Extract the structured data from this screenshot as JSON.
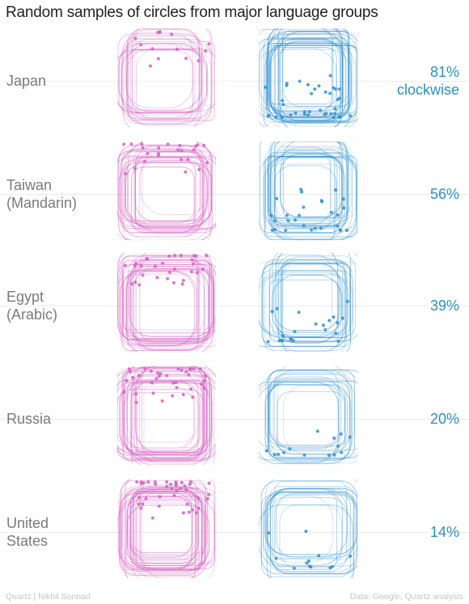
{
  "title": "Random samples of circles from major language groups",
  "colors": {
    "counterclockwise": "#d65fc1",
    "clockwise": "#2f8fd0",
    "label": "#7a7a7a",
    "percent": "#2d8fc4"
  },
  "chart_data": {
    "type": "small-multiples",
    "rows": [
      {
        "country": [
          "Japan"
        ],
        "clockwise_pct": 81,
        "percent_label": [
          "81%",
          "clockwise"
        ]
      },
      {
        "country": [
          "Taiwan",
          "(Mandarin)"
        ],
        "clockwise_pct": 56,
        "percent_label": [
          "56%"
        ]
      },
      {
        "country": [
          "Egypt",
          "(Arabic)"
        ],
        "clockwise_pct": 39,
        "percent_label": [
          "39%"
        ]
      },
      {
        "country": [
          "Russia"
        ],
        "clockwise_pct": 20,
        "percent_label": [
          "20%"
        ]
      },
      {
        "country": [
          "United",
          "States"
        ],
        "clockwise_pct": 14,
        "percent_label": [
          "14%"
        ]
      }
    ]
  },
  "footer": {
    "left": "Quartz | Nikhil Sonnad",
    "right": "Data: Google, Quartz analysis"
  }
}
